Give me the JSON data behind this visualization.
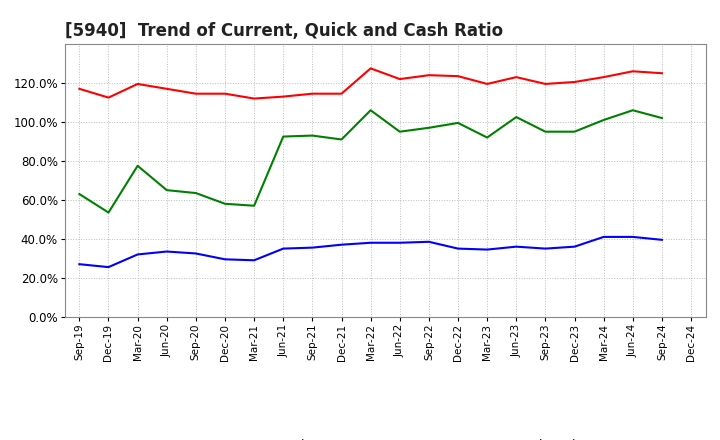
{
  "title": "[5940]  Trend of Current, Quick and Cash Ratio",
  "labels": [
    "Sep-19",
    "Dec-19",
    "Mar-20",
    "Jun-20",
    "Sep-20",
    "Dec-20",
    "Mar-21",
    "Jun-21",
    "Sep-21",
    "Dec-21",
    "Mar-22",
    "Jun-22",
    "Sep-22",
    "Dec-22",
    "Mar-23",
    "Jun-23",
    "Sep-23",
    "Dec-23",
    "Mar-24",
    "Jun-24",
    "Sep-24",
    "Dec-24"
  ],
  "current_ratio": [
    117.0,
    112.5,
    119.5,
    117.0,
    114.5,
    114.5,
    112.0,
    113.0,
    114.5,
    114.5,
    127.5,
    122.0,
    124.0,
    123.5,
    119.5,
    123.0,
    119.5,
    120.5,
    123.0,
    126.0,
    125.0,
    null
  ],
  "quick_ratio": [
    63.0,
    53.5,
    77.5,
    65.0,
    63.5,
    58.0,
    57.0,
    92.5,
    93.0,
    91.0,
    106.0,
    95.0,
    97.0,
    99.5,
    92.0,
    102.5,
    95.0,
    95.0,
    101.0,
    106.0,
    102.0,
    null
  ],
  "cash_ratio": [
    27.0,
    25.5,
    32.0,
    33.5,
    32.5,
    29.5,
    29.0,
    35.0,
    35.5,
    37.0,
    38.0,
    38.0,
    38.5,
    35.0,
    34.5,
    36.0,
    35.0,
    36.0,
    41.0,
    41.0,
    39.5,
    null
  ],
  "current_color": "#FF0000",
  "quick_color": "#008000",
  "cash_color": "#0000FF",
  "ylim": [
    0,
    140
  ],
  "yticks": [
    0,
    20,
    40,
    60,
    80,
    100,
    120
  ],
  "background_color": "#FFFFFF",
  "plot_bg_color": "#FFFFFF",
  "grid_color": "#AAAAAA",
  "title_fontsize": 12,
  "legend_fontsize": 9,
  "tick_fontsize": 7.5
}
